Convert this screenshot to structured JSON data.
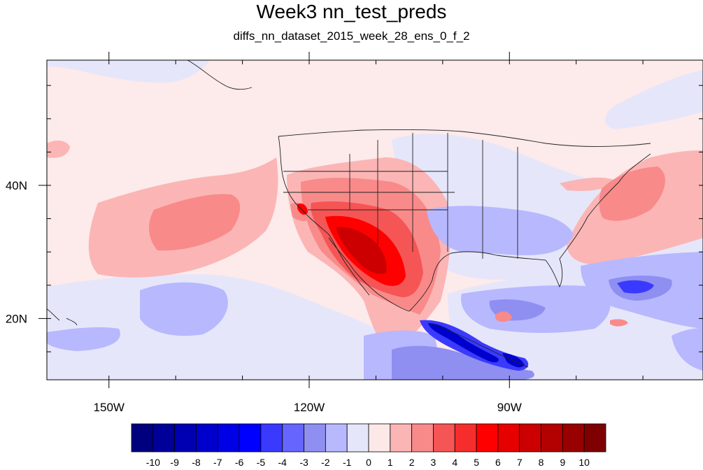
{
  "title": "Week3 nn_test_preds",
  "subtitle": "diffs_nn_dataset_2015_week_28_ens_0_f_2",
  "map": {
    "projection": "cylindrical-equidistant",
    "lon_range": [
      -159.3,
      -61
    ],
    "lat_range": [
      10.8,
      58.8
    ],
    "lon_ticks": [
      {
        "value": -150,
        "label": "150W"
      },
      {
        "value": -120,
        "label": "120W"
      },
      {
        "value": -90,
        "label": "90W"
      }
    ],
    "lat_ticks": [
      {
        "value": 40,
        "label": "40N"
      },
      {
        "value": 20,
        "label": "20N"
      }
    ],
    "background_color": "#fdeaea"
  },
  "colorbar": {
    "labels": [
      "-10",
      "-9",
      "-8",
      "-7",
      "-6",
      "-5",
      "-4",
      "-3",
      "-2",
      "-1",
      "0",
      "1",
      "2",
      "3",
      "4",
      "5",
      "6",
      "7",
      "8",
      "9",
      "10"
    ],
    "colors": [
      "#00007f",
      "#000099",
      "#0000b3",
      "#0000cc",
      "#0000e6",
      "#0000ff",
      "#3a3aff",
      "#6666ff",
      "#8f8ff2",
      "#b8b8ff",
      "#e6e6fa",
      "#fde8e8",
      "#fbb5b5",
      "#f98a8a",
      "#f55555",
      "#f52d2d",
      "#ff0000",
      "#e60000",
      "#cc0000",
      "#b30000",
      "#990000",
      "#7f0000"
    ]
  }
}
